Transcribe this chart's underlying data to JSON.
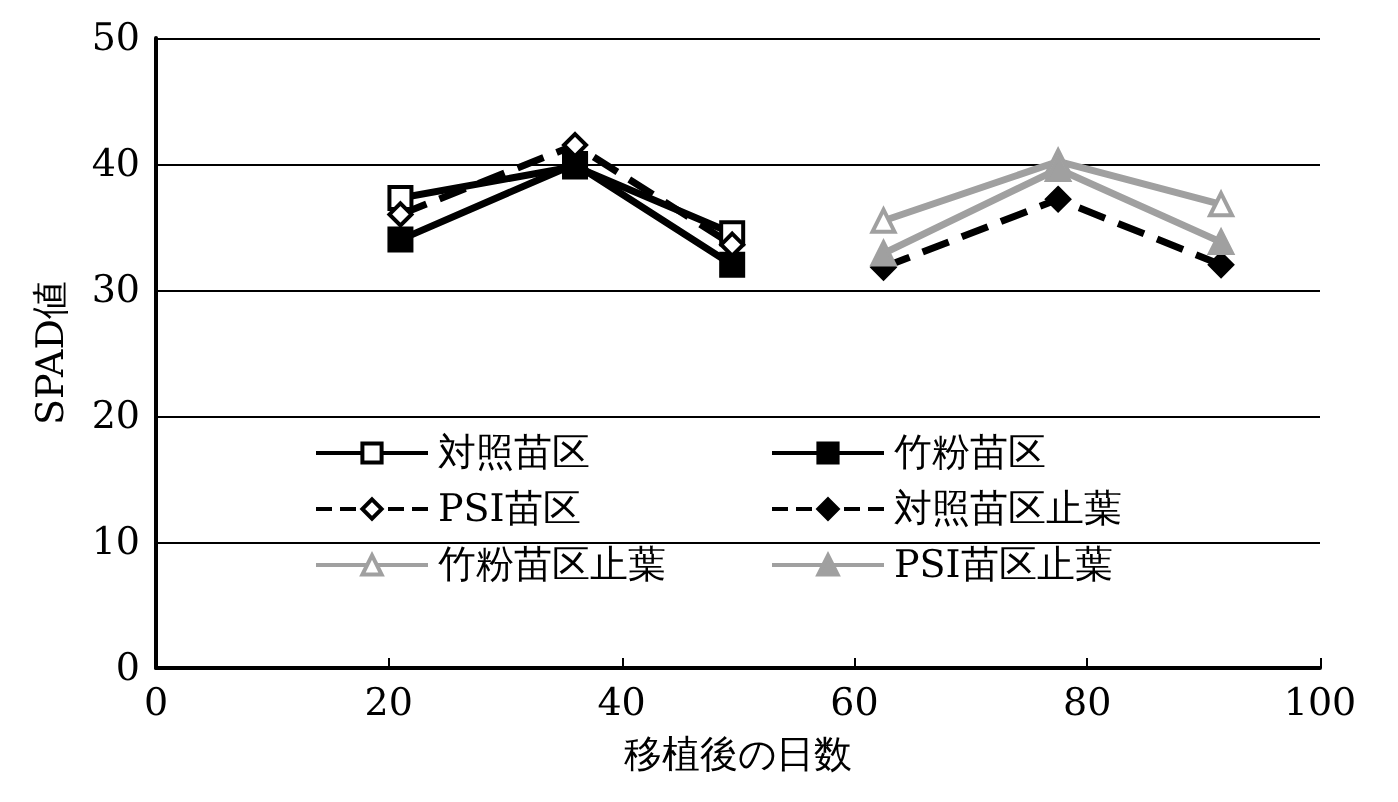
{
  "chart_data": {
    "type": "line",
    "xlabel": "移植後の日数",
    "ylabel": "SPAD値",
    "xlim": [
      0,
      100
    ],
    "xticks": [
      0,
      20,
      40,
      60,
      80,
      100
    ],
    "ylim": [
      0,
      50
    ],
    "yticks": [
      0,
      10,
      20,
      30,
      40,
      50
    ],
    "grid": "y",
    "legend": "bottom",
    "series": [
      {
        "name": "対照苗区",
        "color": "#000000",
        "x": [
          21,
          36,
          49.5
        ],
        "values": [
          37.3,
          39.8,
          34.5
        ],
        "marker": "square",
        "line_style": "solid"
      },
      {
        "name": "竹粉苗区",
        "color": "#000000",
        "x": [
          21,
          36,
          49.5
        ],
        "values": [
          34.0,
          40.0,
          32.0
        ],
        "marker": "square",
        "line_style": "solid"
      },
      {
        "name": "PSI苗区",
        "color": "#000000",
        "x": [
          21,
          36,
          49.5
        ],
        "values": [
          36.0,
          41.5,
          33.6
        ],
        "marker": "diamond",
        "line_style": "dashed"
      },
      {
        "name": "対照苗区止葉",
        "color": "#000000",
        "x": [
          62.5,
          77.5,
          91.5
        ],
        "values": [
          31.8,
          37.2,
          32.0
        ],
        "marker": "diamond",
        "line_style": "dashed"
      },
      {
        "name": "竹粉苗区止葉",
        "color": "#a0a0a0",
        "x": [
          62.5,
          77.5,
          91.5
        ],
        "values": [
          35.5,
          40.2,
          36.8
        ],
        "marker": "triangle",
        "line_style": "solid"
      },
      {
        "name": "PSI苗区止葉",
        "color": "#a0a0a0",
        "x": [
          62.5,
          77.5,
          91.5
        ],
        "values": [
          32.9,
          39.6,
          33.8
        ],
        "marker": "triangle",
        "line_style": "solid"
      }
    ]
  }
}
